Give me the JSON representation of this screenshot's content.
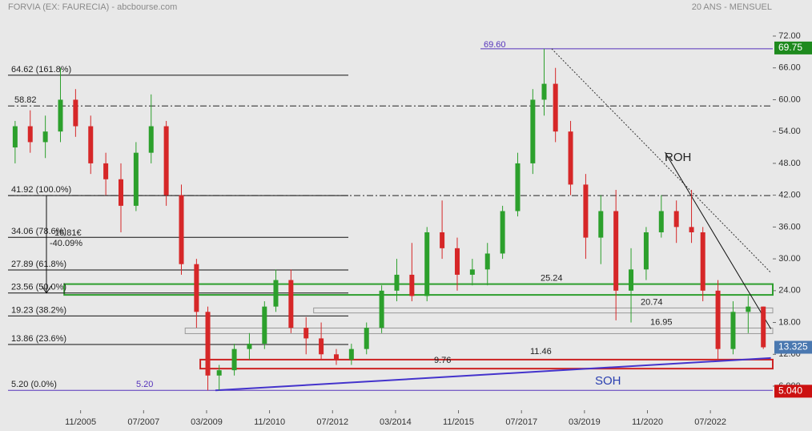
{
  "chart_data": {
    "type": "candlestick",
    "title": "FORVIA (EX: FAURECIA) - abcbourse.com",
    "subtitle": "20 ANS - MENSUEL",
    "x": [
      2004.1,
      2004.5,
      2004.9,
      2005.3,
      2005.7,
      2006.1,
      2006.5,
      2006.9,
      2007.3,
      2007.7,
      2008.1,
      2008.5,
      2008.9,
      2009.2,
      2009.5,
      2009.9,
      2010.3,
      2010.7,
      2011.0,
      2011.4,
      2011.8,
      2012.2,
      2012.6,
      2013.0,
      2013.4,
      2013.8,
      2014.2,
      2014.6,
      2015.0,
      2015.4,
      2015.8,
      2016.2,
      2016.6,
      2017.0,
      2017.4,
      2017.8,
      2018.1,
      2018.4,
      2018.8,
      2019.2,
      2019.6,
      2020.0,
      2020.4,
      2020.8,
      2021.2,
      2021.6,
      2022.0,
      2022.3,
      2022.7,
      2023.1,
      2023.5,
      2023.9
    ],
    "open": [
      51,
      55,
      52,
      54,
      60,
      55,
      48,
      45,
      40,
      50,
      55,
      42,
      29,
      20,
      8,
      9,
      13,
      14,
      21,
      26,
      17,
      15,
      12,
      11,
      13,
      17,
      24,
      27,
      23,
      35,
      32,
      27,
      28,
      31,
      39,
      48,
      60,
      63,
      54,
      44,
      34,
      39,
      24,
      28,
      35,
      39,
      36,
      35,
      24,
      13,
      20,
      21
    ],
    "high": [
      56,
      58,
      57,
      66,
      62,
      57,
      50,
      48,
      52,
      61,
      56,
      44,
      30,
      21,
      10,
      14,
      16,
      22,
      28,
      28,
      19,
      18,
      13,
      14,
      18,
      25,
      30,
      33,
      36,
      41,
      34,
      30,
      33,
      40,
      50,
      62,
      69.6,
      66,
      56,
      46,
      42,
      43,
      32,
      36,
      42,
      41,
      43,
      36,
      26,
      22,
      23,
      21
    ],
    "low": [
      48,
      50,
      49,
      52,
      53,
      46,
      42,
      35,
      39,
      48,
      40,
      27,
      17,
      5.2,
      5.2,
      8,
      11,
      13,
      20,
      16,
      12,
      11,
      10,
      10,
      12,
      16,
      22,
      22,
      22,
      30,
      24,
      25,
      25,
      30,
      38,
      46,
      57,
      52,
      42,
      30,
      29,
      18.4,
      18,
      26,
      34,
      33,
      33,
      22,
      11,
      12,
      16,
      13
    ],
    "close": [
      55,
      52,
      54,
      60,
      55,
      48,
      45,
      40,
      50,
      55,
      42,
      29,
      20,
      8,
      9,
      13,
      14,
      21,
      26,
      17,
      15,
      12,
      11,
      13,
      17,
      24,
      27,
      23,
      35,
      32,
      27,
      28,
      31,
      39,
      48,
      60,
      63,
      54,
      44,
      34,
      39,
      24,
      28,
      35,
      39,
      36,
      35,
      24,
      13,
      20,
      21,
      13.325
    ],
    "up_color": "#2ca02c",
    "down_color": "#d62728",
    "xlim": [
      2003.7,
      2024.15
    ],
    "ylim": [
      6,
      72
    ],
    "xticks": [
      {
        "value": 2005.833,
        "label": "11/2005"
      },
      {
        "value": 2007.5,
        "label": "07/2007"
      },
      {
        "value": 2009.167,
        "label": "03/2009"
      },
      {
        "value": 2010.833,
        "label": "11/2010"
      },
      {
        "value": 2012.5,
        "label": "07/2012"
      },
      {
        "value": 2014.167,
        "label": "03/2014"
      },
      {
        "value": 2015.833,
        "label": "11/2015"
      },
      {
        "value": 2017.5,
        "label": "07/2017"
      },
      {
        "value": 2019.167,
        "label": "03/2019"
      },
      {
        "value": 2020.833,
        "label": "11/2020"
      },
      {
        "value": 2022.5,
        "label": "07/2022"
      }
    ],
    "yticks": [
      {
        "value": 72,
        "label": "72.00"
      },
      {
        "value": 66,
        "label": "66.00"
      },
      {
        "value": 60,
        "label": "60.00"
      },
      {
        "value": 54,
        "label": "54.00"
      },
      {
        "value": 48,
        "label": "48.00"
      },
      {
        "value": 42,
        "label": "42.00"
      },
      {
        "value": 36,
        "label": "36.00"
      },
      {
        "value": 30,
        "label": "30.00"
      },
      {
        "value": 24,
        "label": "24.00"
      },
      {
        "value": 18,
        "label": "18.00"
      },
      {
        "value": 12,
        "label": "12.00"
      },
      {
        "value": 6,
        "label": "6.000"
      }
    ],
    "fib_levels": [
      {
        "value": 64.62,
        "label": "64.62  (161.8%)"
      },
      {
        "value": 41.92,
        "label": "41.92  (100.0%)"
      },
      {
        "value": 34.06,
        "label": "34.06  (78.6%)"
      },
      {
        "value": 27.89,
        "label": "27.89  (61.8%)"
      },
      {
        "value": 23.56,
        "label": "23.56  (50.0%)"
      },
      {
        "value": 19.23,
        "label": "19.23  (38.2%)"
      },
      {
        "value": 13.86,
        "label": "13.86  (23.6%)"
      },
      {
        "value": 5.2,
        "label": "5.20  (0.0%)"
      }
    ],
    "dashdot_lines": [
      {
        "value": 58.82,
        "label": "58.82"
      },
      41.92
    ],
    "high_mark": {
      "value": 69.6,
      "label": "69.60"
    },
    "low_mark": {
      "value": 5.2,
      "label": "5.20"
    },
    "move": {
      "amount": "16.81€",
      "percent": "-40.09%"
    },
    "zones": [
      {
        "low": 23.2,
        "high": 25.24,
        "start": 2005.4,
        "color": "#2e9e2e"
      },
      {
        "low": 19.8,
        "high": 20.74,
        "start": 2012.0,
        "color": "#999999"
      },
      {
        "low": 15.9,
        "high": 16.95,
        "start": 2008.6,
        "color": "#999999"
      },
      {
        "low": 9.3,
        "high": 11.0,
        "start": 2009.0,
        "color": "#cc2222"
      }
    ],
    "levels": [
      25.24,
      20.74,
      16.95,
      11.46,
      9.76
    ],
    "resistance": {
      "label": "ROH",
      "x": [
        2021.3,
        2024.1
      ],
      "y": [
        50.1,
        16.8
      ]
    },
    "support": {
      "label": "SOH",
      "x": [
        2009.4,
        2024.1
      ],
      "y": [
        5.2,
        11.3
      ]
    },
    "dotted_trend": {
      "x": [
        2018.3,
        2024.1
      ],
      "y": [
        69.6,
        27.4
      ]
    },
    "price_tags": [
      {
        "value": 69.75,
        "color": "#1e8a1e"
      },
      {
        "value": 13.325,
        "color": "#4a78b0"
      },
      {
        "value": 5.04,
        "label": "5.040",
        "color": "#cc1111"
      }
    ]
  }
}
